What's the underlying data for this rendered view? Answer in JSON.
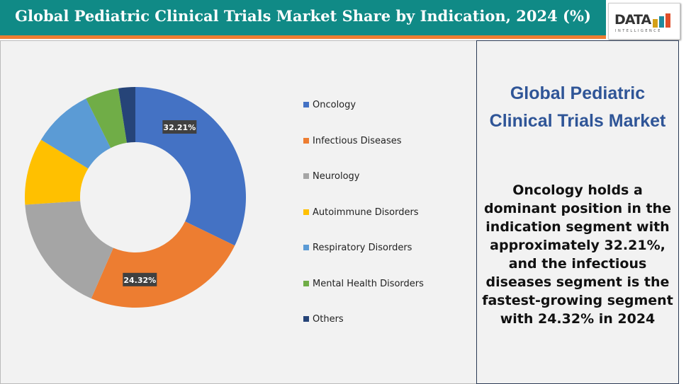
{
  "header": {
    "title": "Global Pediatric Clinical Trials Market Share by Indication, 2024 (%)"
  },
  "logo": {
    "text": "DATA",
    "subtext": "INTELLIGENCE"
  },
  "side": {
    "title": "Global Pediatric Clinical Trials Market",
    "body": "Oncology holds a dominant position in the indication segment with approximately 32.21%, and the infectious diseases segment is the fastest-growing segment with 24.32% in 2024"
  },
  "chart_data": {
    "type": "pie",
    "subtype": "donut",
    "legend_position": "right",
    "categories": [
      "Oncology",
      "Infectious Diseases",
      "Neurology",
      "Autoimmune Disorders",
      "Respiratory Disorders",
      "Mental Health Disorders",
      "Others"
    ],
    "values": [
      32.21,
      24.32,
      17.4,
      9.8,
      8.9,
      4.9,
      2.47
    ],
    "data_labels": [
      "32.21%",
      "24.32%",
      "",
      "",
      "",
      "",
      ""
    ],
    "colors": [
      "#4472c4",
      "#ed7d31",
      "#a5a5a5",
      "#ffc000",
      "#5b9bd5",
      "#70ad47",
      "#264478"
    ]
  }
}
